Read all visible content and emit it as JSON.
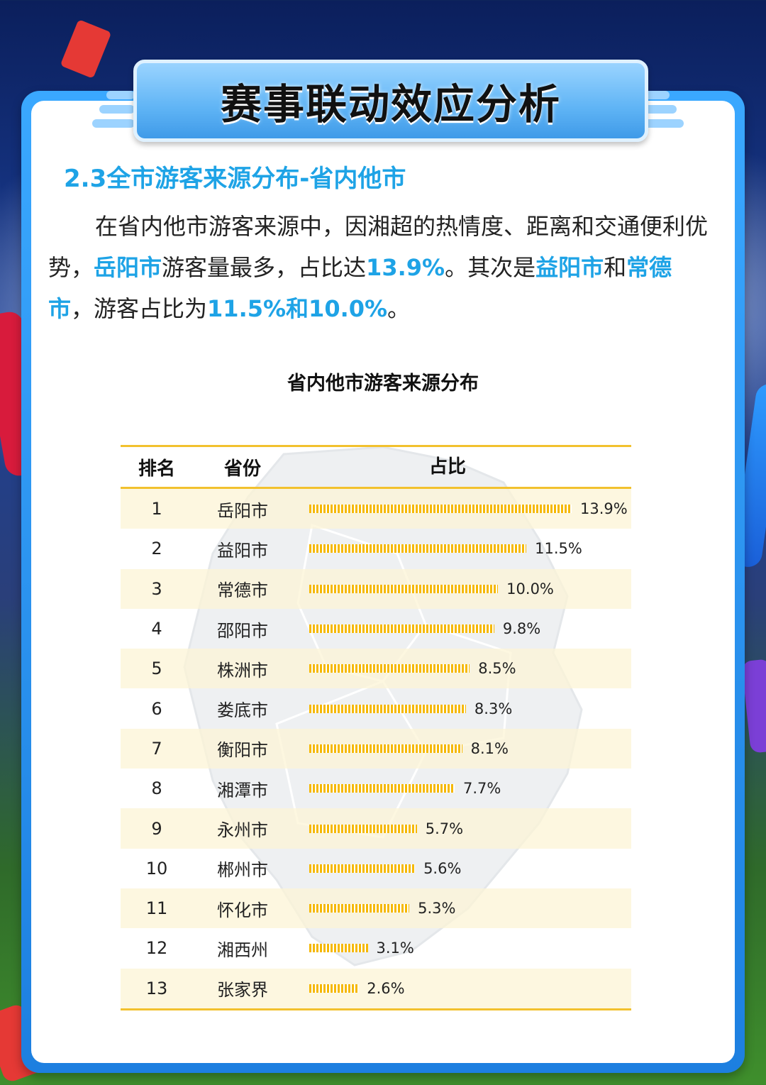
{
  "header": {
    "title": "赛事联动效应分析"
  },
  "section": {
    "heading": "2.3全市游客来源分布-省内他市",
    "paragraph": [
      {
        "text": "在省内他市游客来源中，因湘超的热情度、距离和交通便利优势，",
        "hl": false
      },
      {
        "text": "岳阳市",
        "hl": true
      },
      {
        "text": "游客量最多，占比达",
        "hl": false
      },
      {
        "text": "13.9%",
        "hl": true
      },
      {
        "text": "。其次是",
        "hl": false
      },
      {
        "text": "益阳市",
        "hl": true
      },
      {
        "text": "和",
        "hl": false
      },
      {
        "text": "常德市",
        "hl": true
      },
      {
        "text": "，游客占比为",
        "hl": false
      },
      {
        "text": "11.5%和10.0%",
        "hl": true
      },
      {
        "text": "。",
        "hl": false
      }
    ]
  },
  "colors": {
    "accent": "#1ea3e6",
    "bar": "#f5b800",
    "rule": "#f2c12e",
    "panel": "#1d7fe0"
  },
  "chart_data": {
    "type": "bar",
    "title": "省内他市游客来源分布",
    "columns": [
      "排名",
      "省份",
      "占比"
    ],
    "categories": [
      "岳阳市",
      "益阳市",
      "常德市",
      "邵阳市",
      "株洲市",
      "娄底市",
      "衡阳市",
      "湘潭市",
      "永州市",
      "郴州市",
      "怀化市",
      "湘西州",
      "张家界"
    ],
    "ranks": [
      "1",
      "2",
      "3",
      "4",
      "5",
      "6",
      "7",
      "8",
      "9",
      "10",
      "11",
      "12",
      "13"
    ],
    "values": [
      13.9,
      11.5,
      10.0,
      9.8,
      8.5,
      8.3,
      8.1,
      7.7,
      5.7,
      5.6,
      5.3,
      3.1,
      2.6
    ],
    "labels": [
      "13.9%",
      "11.5%",
      "10.0%",
      "9.8%",
      "8.5%",
      "8.3%",
      "8.1%",
      "7.7%",
      "5.7%",
      "5.6%",
      "5.3%",
      "3.1%",
      "2.6%"
    ],
    "orientation": "horizontal",
    "grid": false
  }
}
